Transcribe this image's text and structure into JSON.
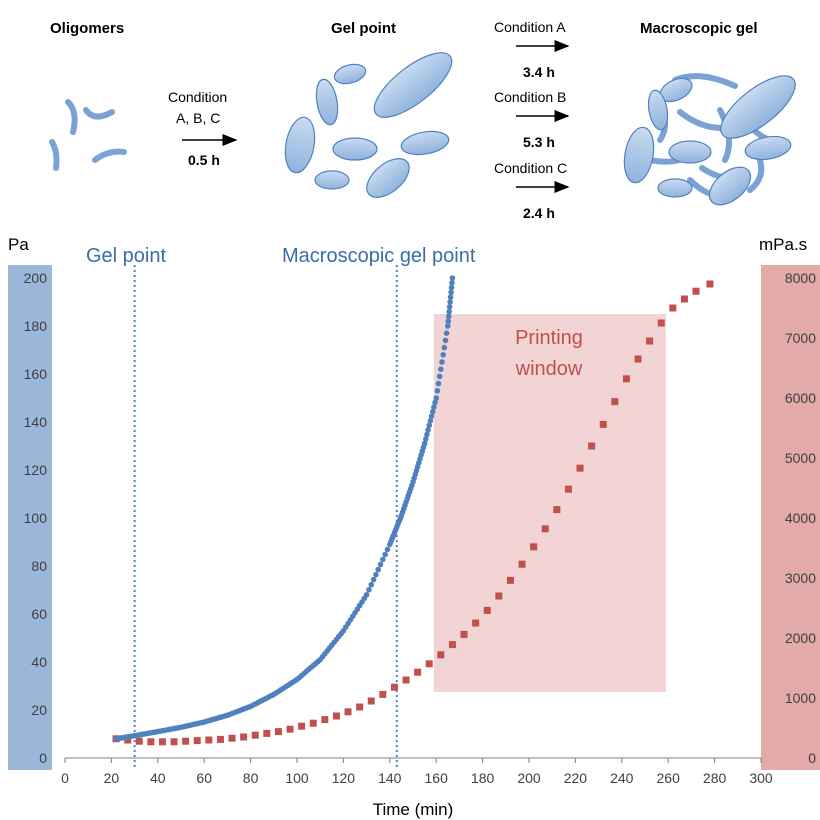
{
  "scheme": {
    "stages": [
      {
        "title": "Oligomers"
      },
      {
        "title": "Gel point"
      },
      {
        "title": "Macroscopic gel"
      }
    ],
    "first_step": {
      "label_line1": "Condition",
      "label_line2": "A, B, C",
      "duration": "0.5 h"
    },
    "conditions": [
      {
        "label": "Condition A",
        "duration": "3.4 h"
      },
      {
        "label": "Condition B",
        "duration": "5.3 h"
      },
      {
        "label": "Condition C",
        "duration": "2.4 h"
      }
    ],
    "colors": {
      "particle_fill": "#a8c4e6",
      "particle_stroke": "#4f81bd"
    }
  },
  "chart_data": {
    "type": "scatter",
    "xlabel": "Time (min)",
    "ylabel_left": "Pa",
    "ylabel_right": "mPa.s",
    "xlim": [
      0,
      300
    ],
    "ylim_left": [
      0,
      200
    ],
    "ylim_right": [
      0,
      8000
    ],
    "x_ticks": [
      0,
      20,
      40,
      60,
      80,
      100,
      120,
      140,
      160,
      180,
      200,
      220,
      240,
      260,
      280,
      300
    ],
    "y_ticks_left": [
      0,
      20,
      40,
      60,
      80,
      100,
      120,
      140,
      160,
      180,
      200
    ],
    "y_ticks_right": [
      0,
      1000,
      2000,
      3000,
      4000,
      5000,
      6000,
      7000,
      8000
    ],
    "grid": false,
    "colors": {
      "left_axis_band": "#9bb7da",
      "right_axis_band": "#e2aaa9",
      "window_fill": "#f2d4d4"
    },
    "annotations": {
      "gel_point": {
        "text": "Gel point",
        "x": 30
      },
      "macroscopic_gel_point": {
        "text": "Macroscopic gel point",
        "x": 143
      },
      "printing_window": {
        "text_line1": "Printing",
        "text_line2": "window",
        "x_range": [
          159,
          259
        ],
        "y_right_range": [
          1100,
          7400
        ]
      }
    },
    "series": [
      {
        "axis": "left",
        "color": "#4f81bd",
        "marker": "dense-dots",
        "x": [
          22,
          30,
          40,
          50,
          60,
          70,
          80,
          90,
          100,
          110,
          120,
          130,
          140,
          145,
          150,
          155,
          160,
          165,
          167
        ],
        "y": [
          8,
          9.3,
          11,
          12.8,
          15,
          17.8,
          21.5,
          26.5,
          32.7,
          41,
          53,
          68,
          89,
          101,
          115,
          131,
          150,
          180,
          200
        ]
      },
      {
        "axis": "right",
        "color": "#c0504d",
        "marker": "square",
        "x": [
          22,
          27,
          32,
          37,
          42,
          47,
          52,
          57,
          62,
          67,
          72,
          77,
          82,
          87,
          92,
          97,
          102,
          107,
          112,
          117,
          122,
          127,
          132,
          137,
          142,
          147,
          152,
          157,
          162,
          167,
          172,
          177,
          182,
          187,
          192,
          197,
          202,
          207,
          212,
          217,
          222,
          227,
          232,
          237,
          242,
          247,
          252,
          257,
          262,
          267,
          272,
          278
        ],
        "y": [
          320,
          300,
          280,
          270,
          270,
          270,
          280,
          290,
          300,
          310,
          330,
          350,
          380,
          410,
          440,
          480,
          530,
          580,
          640,
          700,
          770,
          850,
          950,
          1060,
          1180,
          1300,
          1430,
          1570,
          1720,
          1890,
          2060,
          2250,
          2460,
          2700,
          2960,
          3230,
          3520,
          3820,
          4140,
          4480,
          4830,
          5200,
          5560,
          5940,
          6320,
          6650,
          6950,
          7250,
          7500,
          7650,
          7780,
          7900
        ]
      }
    ]
  }
}
